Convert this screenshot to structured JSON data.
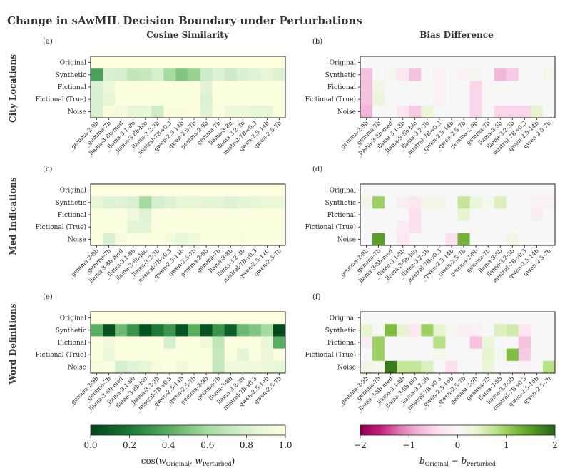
{
  "title": "Change in sAwMIL Decision Boundary under Perturbations",
  "column_titles": [
    "Cosine Similarity",
    "Bias Difference"
  ],
  "row_titles": [
    "City Locations",
    "Med Indications",
    "Word Definitions"
  ],
  "colorbars": [
    {
      "ticks": [
        "0.0",
        "0.2",
        "0.4",
        "0.6",
        "0.8",
        "1.0"
      ],
      "label": "cos(w⃗Original, w⃗Perturbed)",
      "label_main": "cos(",
      "label_sym": "w",
      "label_sub1": "Original",
      "label_sep": ", ",
      "label_sub2": "Perturbed",
      "label_close": ")"
    },
    {
      "ticks": [
        "−2",
        "−1",
        "0",
        "1",
        "2"
      ],
      "label": "bOriginal − bPerturbed",
      "label_b": "b",
      "label_sub1": "Original",
      "label_minus": " − ",
      "label_sub2": "Perturbed"
    }
  ],
  "colors": {
    "cos_scale": [
      "#00441b",
      "#1b7837",
      "#5aae61",
      "#a6dba0",
      "#d9f0d3",
      "#ffffe0"
    ],
    "bias_scale": [
      "#8e0152",
      "#c51b7d",
      "#de77ae",
      "#f1b6da",
      "#fde0ef",
      "#f7f7f7",
      "#e6f5d0",
      "#b8e186",
      "#7fbc41",
      "#4d9221",
      "#276419"
    ],
    "text": "#222222",
    "title": "#333333"
  },
  "chart_data": [
    {
      "type": "heatmap",
      "panel_label": "(a)",
      "metric": "cosine",
      "row_title": "City Locations",
      "title": "Cosine Similarity",
      "y_categories": [
        "Original",
        "Synthetic",
        "Fictional",
        "Fictional (True)",
        "Noise"
      ],
      "x_categories": [
        "_gemma-2-9b",
        "_gemma-7b",
        "_llama-3-8b-med",
        "_llama-3.1-8b",
        "_llama-3-8b-bio",
        "_llama-3.2-3b",
        "_mistral-7B-v0.3",
        "_qwen-2.5-14b",
        "_qwen-2.5-7b",
        "gemma-2-9b",
        "gemma-7b",
        "llama-3-8b",
        "llama-3.2-3b",
        "mistral-7B-v0.3",
        "qwen-2.5-14b",
        "qwen-2.5-7b"
      ],
      "values": [
        [
          1.0,
          1.0,
          1.0,
          1.0,
          1.0,
          1.0,
          1.0,
          1.0,
          1.0,
          1.0,
          1.0,
          1.0,
          1.0,
          1.0,
          1.0,
          1.0
        ],
        [
          0.35,
          0.8,
          0.78,
          0.7,
          0.72,
          0.78,
          0.6,
          0.5,
          0.56,
          0.75,
          0.82,
          0.75,
          0.8,
          0.84,
          0.88,
          0.82
        ],
        [
          0.8,
          0.9,
          0.98,
          0.98,
          0.98,
          0.98,
          0.98,
          0.98,
          0.98,
          0.85,
          0.98,
          0.98,
          0.98,
          0.98,
          0.98,
          0.98
        ],
        [
          0.8,
          0.88,
          0.98,
          0.98,
          0.98,
          0.98,
          0.98,
          0.98,
          0.98,
          0.82,
          0.98,
          0.98,
          0.98,
          0.98,
          0.98,
          0.98
        ],
        [
          0.8,
          0.97,
          0.94,
          0.88,
          0.88,
          0.76,
          0.97,
          0.97,
          0.98,
          0.84,
          0.98,
          0.9,
          0.9,
          0.88,
          0.88,
          0.98
        ]
      ],
      "vmin": 0.0,
      "vmax": 1.0
    },
    {
      "type": "heatmap",
      "panel_label": "(b)",
      "metric": "bias",
      "row_title": "City Locations",
      "title": "Bias Difference",
      "y_categories": [
        "Original",
        "Synthetic",
        "Fictional",
        "Fictional (True)",
        "Noise"
      ],
      "x_categories": [
        "_gemma-2-9b",
        "_gemma-7b",
        "_llama-3-8b-med",
        "_llama-3.1-8b",
        "_llama-3-8b-bio",
        "_llama-3.2-3b",
        "_mistral-7B-v0.3",
        "_qwen-2.5-14b",
        "_qwen-2.5-7b",
        "gemma-2-9b",
        "gemma-7b",
        "llama-3-8b",
        "llama-3.2-3b",
        "mistral-7B-v0.3",
        "qwen-2.5-14b",
        "qwen-2.5-7b"
      ],
      "values": [
        [
          0,
          0,
          0,
          0,
          0,
          0,
          0,
          0,
          0,
          0,
          0,
          0,
          0,
          0,
          0,
          0
        ],
        [
          -0.7,
          0,
          0.1,
          -0.3,
          -0.7,
          0,
          -0.1,
          0,
          -0.1,
          0.1,
          0,
          -0.8,
          -0.6,
          0,
          0,
          0.1
        ],
        [
          -0.7,
          0.2,
          0,
          0,
          0,
          0.05,
          -0.1,
          0,
          0,
          -0.5,
          0,
          0,
          0,
          0,
          0,
          0
        ],
        [
          -0.7,
          0.3,
          0,
          0,
          0,
          0,
          -0.1,
          0,
          0,
          -0.5,
          0,
          0,
          0,
          0,
          0,
          0
        ],
        [
          -0.8,
          0,
          0,
          -0.3,
          -0.6,
          0.3,
          0,
          0,
          0,
          -0.5,
          0,
          -0.5,
          -0.5,
          -0.5,
          0.4,
          0
        ]
      ],
      "vmin": -2,
      "vmax": 2
    },
    {
      "type": "heatmap",
      "panel_label": "(c)",
      "metric": "cosine",
      "row_title": "Med Indications",
      "title": "Cosine Similarity",
      "y_categories": [
        "Original",
        "Synthetic",
        "Fictional",
        "Fictional (True)",
        "Noise"
      ],
      "x_categories": [
        "_gemma-2-9b",
        "_gemma-7b",
        "_llama-3-8b-med",
        "_llama-3.1-8b",
        "_llama-3-8b-bio",
        "_llama-3.2-3b",
        "_mistral-7B-v0.3",
        "_qwen-2.5-14b",
        "_qwen-2.5-7b",
        "gemma-2-9b",
        "gemma-7b",
        "llama-3-8b",
        "llama-3.2-3b",
        "mistral-7B-v0.3",
        "qwen-2.5-14b",
        "qwen-2.5-7b"
      ],
      "values": [
        [
          1.0,
          1.0,
          1.0,
          1.0,
          1.0,
          1.0,
          1.0,
          1.0,
          1.0,
          1.0,
          1.0,
          1.0,
          1.0,
          1.0,
          1.0,
          1.0
        ],
        [
          0.88,
          0.82,
          0.84,
          0.8,
          0.6,
          0.78,
          0.82,
          0.88,
          0.88,
          0.86,
          0.86,
          0.82,
          0.86,
          0.88,
          0.9,
          0.9
        ],
        [
          0.98,
          0.98,
          0.98,
          0.92,
          0.84,
          0.98,
          0.98,
          0.98,
          0.98,
          0.98,
          0.98,
          0.98,
          0.98,
          0.98,
          0.98,
          0.98
        ],
        [
          0.98,
          0.98,
          0.98,
          0.86,
          0.86,
          0.98,
          0.98,
          0.98,
          0.98,
          0.98,
          0.98,
          0.98,
          0.98,
          0.98,
          0.98,
          0.98
        ],
        [
          0.98,
          0.8,
          0.95,
          0.98,
          0.98,
          0.98,
          0.94,
          0.88,
          0.92,
          0.98,
          0.98,
          0.98,
          0.97,
          0.98,
          0.98,
          0.98
        ]
      ],
      "vmin": 0.0,
      "vmax": 1.0
    },
    {
      "type": "heatmap",
      "panel_label": "(d)",
      "metric": "bias",
      "row_title": "Med Indications",
      "title": "Bias Difference",
      "y_categories": [
        "Original",
        "Synthetic",
        "Fictional",
        "Fictional (True)",
        "Noise"
      ],
      "x_categories": [
        "_gemma-2-9b",
        "_gemma-7b",
        "_llama-3-8b-med",
        "_llama-3.1-8b",
        "_llama-3-8b-bio",
        "_llama-3.2-3b",
        "_mistral-7B-v0.3",
        "_qwen-2.5-14b",
        "_qwen-2.5-7b",
        "gemma-2-9b",
        "gemma-7b",
        "llama-3-8b",
        "llama-3.2-3b",
        "mistral-7B-v0.3",
        "qwen-2.5-14b",
        "qwen-2.5-7b"
      ],
      "values": [
        [
          0,
          0,
          0,
          0,
          0,
          0,
          0,
          0,
          0,
          0,
          0,
          0,
          0,
          0,
          0,
          0
        ],
        [
          0.15,
          1.0,
          0,
          -0.15,
          -0.3,
          0.15,
          0.15,
          0,
          0.7,
          0.3,
          0.1,
          0.5,
          0,
          0,
          -0.1,
          -0.1
        ],
        [
          0,
          0,
          0,
          0,
          -0.4,
          0,
          0,
          0,
          0.4,
          0,
          0,
          0,
          0,
          0,
          -0.2,
          0
        ],
        [
          0,
          0,
          0,
          -0.2,
          -0.4,
          0,
          0,
          0,
          0,
          0,
          0,
          0,
          0,
          0,
          0,
          0
        ],
        [
          0,
          1.5,
          0,
          -0.3,
          0,
          0,
          0,
          -0.4,
          1.3,
          0,
          0,
          0,
          0.2,
          0,
          0,
          0
        ]
      ],
      "vmin": -2,
      "vmax": 2
    },
    {
      "type": "heatmap",
      "panel_label": "(e)",
      "metric": "cosine",
      "row_title": "Word Definitions",
      "title": "Cosine Similarity",
      "y_categories": [
        "Original",
        "Synthetic",
        "Fictional",
        "Fictional (True)",
        "Noise"
      ],
      "x_categories": [
        "_gemma-2-9b",
        "_gemma-7b",
        "_llama-3-8b-med",
        "_llama-3.1-8b",
        "_llama-3-8b-bio",
        "_llama-3.2-3b",
        "_mistral-7B-v0.3",
        "_qwen-2.5-14b",
        "_qwen-2.5-7b",
        "gemma-2-9b",
        "gemma-7b",
        "llama-3-8b",
        "llama-3.2-3b",
        "mistral-7B-v0.3",
        "qwen-2.5-14b",
        "qwen-2.5-7b"
      ],
      "values": [
        [
          1.0,
          1.0,
          1.0,
          1.0,
          1.0,
          1.0,
          1.0,
          1.0,
          1.0,
          1.0,
          1.0,
          1.0,
          1.0,
          1.0,
          1.0,
          1.0
        ],
        [
          0.4,
          0.05,
          0.45,
          0.3,
          0.05,
          0.2,
          0.3,
          0.05,
          0.4,
          0.05,
          0.3,
          0.1,
          0.45,
          0.5,
          0.6,
          0.02
        ],
        [
          0.98,
          0.92,
          0.98,
          0.98,
          0.98,
          0.98,
          0.78,
          0.98,
          0.98,
          0.92,
          0.7,
          0.98,
          0.98,
          0.98,
          0.88,
          0.4
        ],
        [
          0.98,
          0.9,
          0.98,
          0.98,
          0.98,
          0.98,
          0.98,
          0.98,
          0.98,
          0.98,
          0.72,
          0.98,
          0.86,
          0.98,
          0.9,
          0.98
        ],
        [
          0.96,
          0.98,
          0.78,
          0.84,
          0.88,
          0.96,
          0.98,
          0.92,
          0.98,
          0.98,
          0.72,
          0.92,
          0.92,
          0.92,
          0.9,
          0.88
        ]
      ],
      "vmin": 0.0,
      "vmax": 1.0
    },
    {
      "type": "heatmap",
      "panel_label": "(f)",
      "metric": "bias",
      "row_title": "Word Definitions",
      "title": "Bias Difference",
      "y_categories": [
        "Original",
        "Synthetic",
        "Fictional",
        "Fictional (True)",
        "Noise"
      ],
      "x_categories": [
        "_gemma-2-9b",
        "_gemma-7b",
        "_llama-3-8b-med",
        "_llama-3.1-8b",
        "_llama-3-8b-bio",
        "_llama-3.2-3b",
        "_mistral-7B-v0.3",
        "_qwen-2.5-14b",
        "_qwen-2.5-7b",
        "gemma-2-9b",
        "gemma-7b",
        "llama-3-8b",
        "llama-3.2-3b",
        "mistral-7B-v0.3",
        "qwen-2.5-14b",
        "qwen-2.5-7b"
      ],
      "values": [
        [
          0,
          0,
          0,
          0,
          0,
          0,
          0,
          0,
          0,
          0,
          0,
          0,
          0,
          0,
          0,
          0
        ],
        [
          0.4,
          0.05,
          1.2,
          0.4,
          -0.3,
          1.0,
          0.4,
          0.1,
          -0.15,
          -0.1,
          0,
          0.5,
          0.6,
          -0.3,
          0,
          0
        ],
        [
          -0.2,
          1.0,
          0,
          0,
          0,
          0,
          0.8,
          0,
          0,
          -0.7,
          0.3,
          0,
          0,
          -0.7,
          0,
          0
        ],
        [
          0,
          1.0,
          0,
          0,
          0,
          0,
          0.1,
          0,
          0,
          0,
          0.4,
          0.1,
          1.2,
          -0.6,
          0,
          0
        ],
        [
          0.2,
          0.1,
          1.8,
          0.7,
          0.7,
          0.5,
          0,
          -0.4,
          0,
          0,
          0.3,
          0,
          0,
          -0.1,
          0,
          0.8
        ]
      ],
      "vmin": -2,
      "vmax": 2
    }
  ]
}
